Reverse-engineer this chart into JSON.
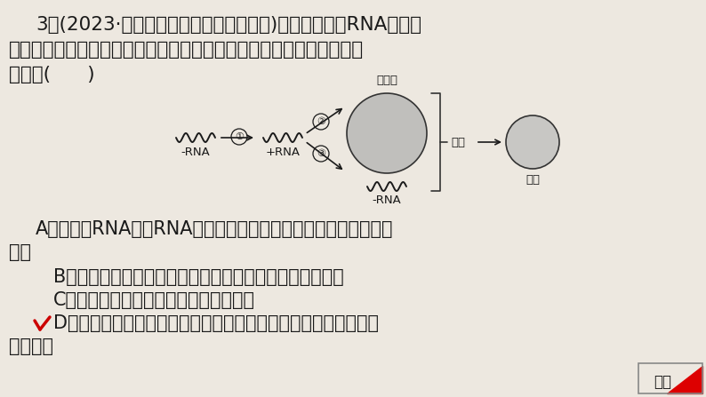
{
  "bg_color": "#ede8e0",
  "text_color": "#1a1a1a",
  "title_line1": "3．(2023·湖北部分重点中学第一次联考)埃博拉病毒是RNA病毒，",
  "title_line2": "曾多次在非洲爆发，其在人体细胞内增殖的过程如图。下列有关叙述正",
  "title_line3": "确的是(      )",
  "option_A_1": "A．图中＋RNA和－RNA均携带病毒的遗传信息，为该病毒的遗传",
  "option_A_2": "物质",
  "option_B": "B．埃博拉病毒可以在餐具上增殖，煮沸餐具可杀死该病毒",
  "option_C": "C．埃博拉病毒只含有核糖体一种细胞器",
  "option_D_1": "D．该病毒可用专门开发的核酸检测试剂检测，检测时会发生碱基",
  "option_D_2": "互补配对",
  "label_danbaizhi": "蛋白质",
  "label_minus_rna_left": "-RNA",
  "label_plus_rna": "+RNA",
  "label_minus_rna_right": "-RNA",
  "label_zuzhuang": "组装",
  "label_bingdu": "病毒",
  "label_answer": "答案",
  "check_color": "#cc0000",
  "answer_red": "#dd0000",
  "answer_border": "#888888",
  "circle_fill": "#c0bfbc",
  "virus_fill": "#c8c7c4",
  "font_size_main": 15.5,
  "font_size_opt": 15,
  "font_size_diagram": 9.5,
  "font_size_circled": 8
}
